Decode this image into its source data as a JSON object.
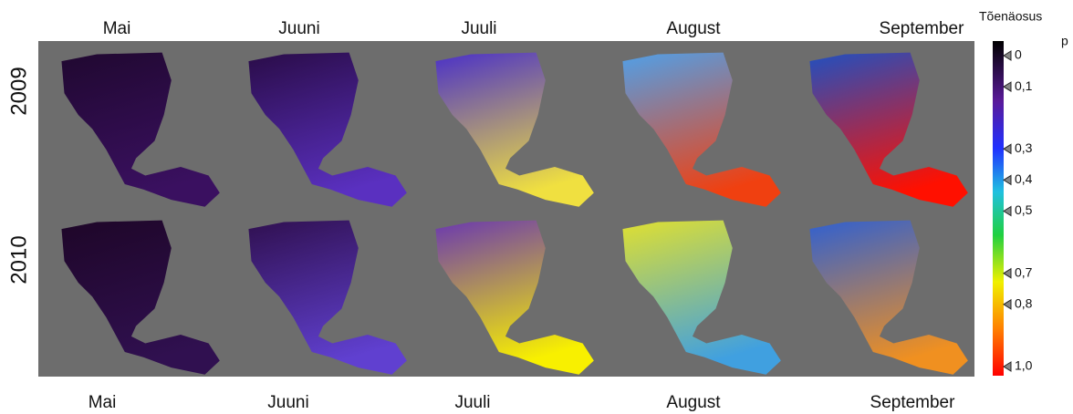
{
  "columns_top": [
    "Mai",
    "Juuni",
    "Juuli",
    "August",
    "September"
  ],
  "columns_bottom": [
    "Mai",
    "Juuni",
    "Juuli",
    "August",
    "September"
  ],
  "rows": [
    "2009",
    "2010"
  ],
  "colorbar": {
    "title": "Tõenäosus",
    "subtitle": "p",
    "lim": [
      0,
      1
    ],
    "ticks": [
      0,
      {
        "value": 0.1,
        "label": "0,1"
      },
      {
        "value": 0.3,
        "label": "0,3"
      },
      {
        "value": 0.4,
        "label": "0,4"
      },
      {
        "value": 0.5,
        "label": "0,5"
      },
      {
        "value": 0.7,
        "label": "0,7"
      },
      {
        "value": 0.8,
        "label": "0,8"
      },
      {
        "value": 1.0,
        "label": "1,0"
      }
    ]
  }
}
